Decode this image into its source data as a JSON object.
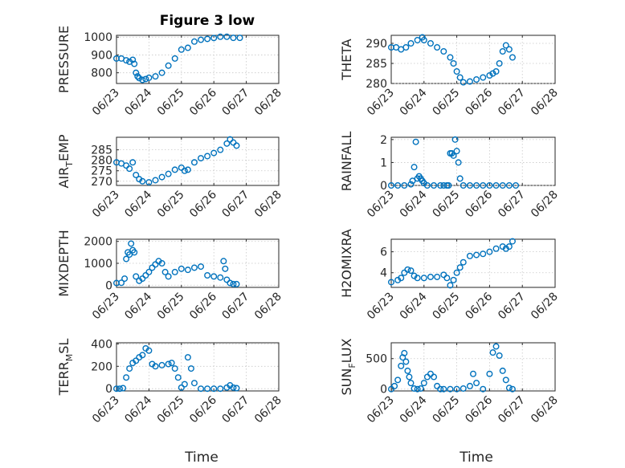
{
  "figure": {
    "title": "Figure 3 low",
    "xlabel": "Time",
    "marker_color": "#0072BD"
  },
  "chart_data": [
    {
      "type": "scatter",
      "title": "Figure 3 low",
      "ylabel": "PRESSURE",
      "ylabel_sub": "",
      "ylabel_tail": "",
      "ylim": [
        740,
        1010
      ],
      "yticks": [
        800,
        900,
        1000
      ],
      "ytick_labels": [
        "800",
        "900",
        "1000"
      ],
      "xlim": [
        0,
        5
      ],
      "xticks": [
        0,
        1,
        2,
        3,
        4,
        5
      ],
      "xtick_labels": [
        "06/23",
        "06/24",
        "06/25",
        "06/26",
        "06/27",
        "06/28"
      ],
      "xlabel": "",
      "grid": true,
      "series": [
        {
          "x": [
            0,
            0.15,
            0.3,
            0.4,
            0.5,
            0.55,
            0.6,
            0.65,
            0.7,
            0.8,
            0.9,
            1.0,
            1.2,
            1.4,
            1.6,
            1.8,
            2.0,
            2.2,
            2.4,
            2.6,
            2.8,
            3.0,
            3.2,
            3.4,
            3.6,
            3.8
          ],
          "y": [
            880,
            880,
            870,
            862,
            873,
            850,
            800,
            780,
            770,
            760,
            765,
            772,
            780,
            800,
            840,
            880,
            930,
            940,
            975,
            985,
            990,
            995,
            1002,
            1002,
            996,
            996
          ]
        }
      ]
    },
    {
      "type": "scatter",
      "title": "",
      "ylabel": "THETA",
      "ylabel_sub": "",
      "ylabel_tail": "",
      "ylim": [
        280,
        292
      ],
      "yticks": [
        280,
        285,
        290
      ],
      "ytick_labels": [
        "280",
        "285",
        "290"
      ],
      "xlim": [
        0,
        5
      ],
      "xticks": [
        0,
        1,
        2,
        3,
        4,
        5
      ],
      "xtick_labels": [
        "06/23",
        "06/24",
        "06/25",
        "06/26",
        "06/27",
        "06/28"
      ],
      "xlabel": "",
      "grid": true,
      "series": [
        {
          "x": [
            0,
            0.15,
            0.3,
            0.45,
            0.6,
            0.8,
            0.95,
            1.0,
            1.2,
            1.4,
            1.6,
            1.8,
            1.9,
            2.0,
            2.1,
            2.2,
            2.4,
            2.6,
            2.8,
            3.0,
            3.1,
            3.2,
            3.3,
            3.4,
            3.5,
            3.6,
            3.7
          ],
          "y": [
            289,
            289,
            288.5,
            289,
            290,
            290.8,
            291.5,
            290.8,
            290,
            289,
            288,
            286.5,
            285,
            283,
            281.5,
            280.3,
            280.5,
            281,
            281.5,
            282,
            282.5,
            283,
            285,
            288,
            289.5,
            288.5,
            286.5
          ]
        }
      ]
    },
    {
      "type": "scatter",
      "title": "",
      "ylabel": "AIR",
      "ylabel_sub": "T",
      "ylabel_tail": "EMP",
      "ylim": [
        268,
        291
      ],
      "yticks": [
        270,
        275,
        280,
        285
      ],
      "ytick_labels": [
        "270",
        "275",
        "280",
        "285"
      ],
      "xlim": [
        0,
        5
      ],
      "xticks": [
        0,
        1,
        2,
        3,
        4,
        5
      ],
      "xtick_labels": [
        "06/23",
        "06/24",
        "06/25",
        "06/26",
        "06/27",
        "06/28"
      ],
      "xlabel": "",
      "grid": true,
      "series": [
        {
          "x": [
            0,
            0.15,
            0.3,
            0.4,
            0.5,
            0.6,
            0.7,
            0.8,
            1.0,
            1.2,
            1.4,
            1.6,
            1.8,
            2.0,
            2.1,
            2.2,
            2.4,
            2.6,
            2.8,
            3.0,
            3.2,
            3.4,
            3.5,
            3.6,
            3.7
          ],
          "y": [
            279,
            278.5,
            277.5,
            276,
            279,
            273,
            271,
            270,
            269.5,
            270.5,
            272,
            273.5,
            275.5,
            276.5,
            275,
            275.5,
            279,
            281,
            282,
            283.5,
            285,
            288,
            290,
            288.5,
            287
          ]
        }
      ]
    },
    {
      "type": "scatter",
      "title": "",
      "ylabel": "RAINFALL",
      "ylabel_sub": "",
      "ylabel_tail": "",
      "ylim": [
        0,
        2.1
      ],
      "yticks": [
        0,
        1,
        2
      ],
      "ytick_labels": [
        "0",
        "1",
        "2"
      ],
      "xlim": [
        0,
        5
      ],
      "xticks": [
        0,
        1,
        2,
        3,
        4,
        5
      ],
      "xtick_labels": [
        "06/23",
        "06/24",
        "06/25",
        "06/26",
        "06/27",
        "06/28"
      ],
      "xlabel": "",
      "grid": true,
      "series": [
        {
          "x": [
            0,
            0.2,
            0.4,
            0.6,
            0.65,
            0.7,
            0.75,
            0.8,
            0.85,
            0.9,
            0.95,
            1.0,
            1.1,
            1.3,
            1.5,
            1.6,
            1.7,
            1.75,
            1.8,
            1.85,
            1.9,
            1.95,
            2.0,
            2.05,
            2.1,
            2.2,
            2.4,
            2.6,
            2.8,
            3.0,
            3.2,
            3.4,
            3.6,
            3.8
          ],
          "y": [
            0,
            0,
            0,
            0.05,
            0.2,
            0.8,
            1.9,
            0.3,
            0.4,
            0.3,
            0.2,
            0.1,
            0,
            0,
            0,
            0,
            0,
            0,
            1.4,
            1.4,
            1.3,
            2.0,
            1.5,
            1.0,
            0.3,
            0,
            0,
            0,
            0,
            0,
            0,
            0,
            0,
            0
          ]
        }
      ]
    },
    {
      "type": "scatter",
      "title": "",
      "ylabel": "MIXDEPTH",
      "ylabel_sub": "",
      "ylabel_tail": "",
      "ylim": [
        -100,
        2100
      ],
      "yticks": [
        0,
        1000,
        2000
      ],
      "ytick_labels": [
        "0",
        "1000",
        "2000"
      ],
      "xlim": [
        0,
        5
      ],
      "xticks": [
        0,
        1,
        2,
        3,
        4,
        5
      ],
      "xtick_labels": [
        "06/23",
        "06/24",
        "06/25",
        "06/26",
        "06/27",
        "06/28"
      ],
      "xlabel": "",
      "grid": true,
      "series": [
        {
          "x": [
            0,
            0.15,
            0.25,
            0.3,
            0.35,
            0.4,
            0.45,
            0.5,
            0.55,
            0.6,
            0.7,
            0.8,
            0.9,
            1.0,
            1.1,
            1.2,
            1.3,
            1.4,
            1.5,
            1.6,
            1.8,
            2.0,
            2.2,
            2.4,
            2.6,
            2.8,
            3.0,
            3.2,
            3.3,
            3.35,
            3.4,
            3.5,
            3.6,
            3.7
          ],
          "y": [
            100,
            110,
            300,
            1200,
            1500,
            1400,
            1900,
            1600,
            1500,
            400,
            200,
            300,
            450,
            600,
            800,
            950,
            1100,
            1000,
            600,
            400,
            600,
            750,
            700,
            800,
            850,
            450,
            400,
            350,
            1100,
            750,
            250,
            100,
            50,
            50
          ]
        }
      ]
    },
    {
      "type": "scatter",
      "title": "",
      "ylabel": "H2OMIXRA",
      "ylabel_sub": "",
      "ylabel_tail": "",
      "ylim": [
        2.6,
        7.2
      ],
      "yticks": [
        4,
        6
      ],
      "ytick_labels": [
        "4",
        "6"
      ],
      "xlim": [
        0,
        5
      ],
      "xticks": [
        0,
        1,
        2,
        3,
        4,
        5
      ],
      "xtick_labels": [
        "06/23",
        "06/24",
        "06/25",
        "06/26",
        "06/27",
        "06/28"
      ],
      "xlabel": "",
      "grid": true,
      "series": [
        {
          "x": [
            0,
            0.2,
            0.3,
            0.4,
            0.5,
            0.6,
            0.7,
            0.8,
            1.0,
            1.2,
            1.4,
            1.6,
            1.7,
            1.8,
            1.9,
            2.0,
            2.1,
            2.2,
            2.4,
            2.6,
            2.8,
            3.0,
            3.2,
            3.4,
            3.5,
            3.6,
            3.7
          ],
          "y": [
            3.1,
            3.3,
            3.5,
            4.0,
            4.3,
            4.2,
            3.7,
            3.5,
            3.5,
            3.6,
            3.6,
            3.8,
            3.5,
            2.8,
            3.3,
            4.0,
            4.5,
            5.0,
            5.6,
            5.7,
            5.8,
            6.0,
            6.3,
            6.5,
            6.3,
            6.5,
            7.0
          ]
        }
      ]
    },
    {
      "type": "scatter",
      "title": "",
      "ylabel": "TERR",
      "ylabel_sub": "M",
      "ylabel_tail": "SL",
      "ylim": [
        -20,
        410
      ],
      "yticks": [
        0,
        200,
        400
      ],
      "ytick_labels": [
        "0",
        "200",
        "400"
      ],
      "xlim": [
        0,
        5
      ],
      "xticks": [
        0,
        1,
        2,
        3,
        4,
        5
      ],
      "xtick_labels": [
        "06/23",
        "06/24",
        "06/25",
        "06/26",
        "06/27",
        "06/28"
      ],
      "xlabel": "Time",
      "grid": true,
      "series": [
        {
          "x": [
            0,
            0.1,
            0.2,
            0.3,
            0.4,
            0.5,
            0.6,
            0.7,
            0.8,
            0.9,
            1.0,
            1.1,
            1.2,
            1.4,
            1.6,
            1.7,
            1.8,
            1.9,
            2.0,
            2.1,
            2.2,
            2.3,
            2.4,
            2.6,
            2.8,
            3.0,
            3.2,
            3.4,
            3.5,
            3.6,
            3.7
          ],
          "y": [
            0,
            0,
            5,
            100,
            180,
            230,
            250,
            280,
            300,
            360,
            340,
            220,
            200,
            210,
            220,
            230,
            180,
            100,
            10,
            40,
            280,
            180,
            50,
            0,
            0,
            0,
            0,
            10,
            30,
            10,
            5
          ]
        }
      ]
    },
    {
      "type": "scatter",
      "title": "",
      "ylabel": "SUN",
      "ylabel_sub": "F",
      "ylabel_tail": "LUX",
      "ylim": [
        -30,
        760
      ],
      "yticks": [
        0,
        500
      ],
      "ytick_labels": [
        "0",
        "500"
      ],
      "xlim": [
        0,
        5
      ],
      "xticks": [
        0,
        1,
        2,
        3,
        4,
        5
      ],
      "xtick_labels": [
        "06/23",
        "06/24",
        "06/25",
        "06/26",
        "06/27",
        "06/28"
      ],
      "xlabel": "Time",
      "grid": true,
      "series": [
        {
          "x": [
            0,
            0.1,
            0.2,
            0.3,
            0.35,
            0.4,
            0.45,
            0.5,
            0.55,
            0.6,
            0.7,
            0.8,
            0.9,
            1.0,
            1.1,
            1.2,
            1.3,
            1.4,
            1.5,
            1.6,
            1.8,
            2.0,
            2.2,
            2.4,
            2.5,
            2.6,
            2.8,
            3.0,
            3.1,
            3.2,
            3.3,
            3.4,
            3.5,
            3.6,
            3.7
          ],
          "y": [
            0,
            50,
            150,
            380,
            520,
            590,
            450,
            300,
            200,
            100,
            10,
            0,
            10,
            100,
            200,
            250,
            200,
            50,
            0,
            0,
            0,
            0,
            10,
            50,
            250,
            100,
            0,
            250,
            600,
            700,
            550,
            300,
            150,
            20,
            0
          ]
        }
      ]
    }
  ]
}
